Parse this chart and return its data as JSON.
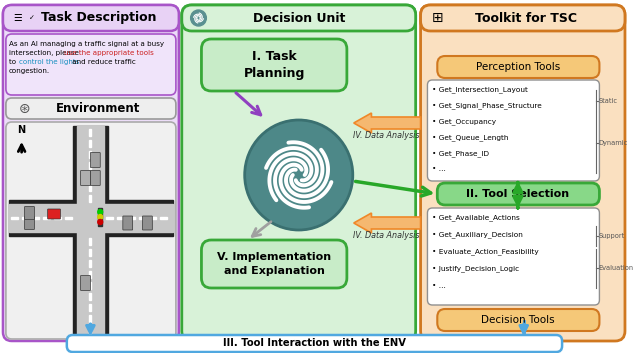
{
  "title_task": "Task Description",
  "title_decision": "Decision Unit",
  "title_toolkit": "Toolkit for TSC",
  "env_title": "Environment",
  "perception_title": "Perception Tools",
  "perception_items": [
    "Get_Intersection_Layout",
    "Get_Signal_Phase_Structure",
    "Get_Occupancy",
    "Get_Queue_Length",
    "Get_Phase_ID",
    "..."
  ],
  "static_label": "Static",
  "dynamic_label": "Dynamic",
  "tool_selection": "II. Tool Selection",
  "decision_title": "Decision Tools",
  "decision_items": [
    "Get_Available_Actions",
    "Get_Auxiliary_Decision",
    "Evaluate_Action_Feasibility",
    "Justify_Decision_Logic",
    "..."
  ],
  "support_label": "Support",
  "evaluation_label": "Evaluation",
  "step1": "I. Task\nPlanning",
  "step5": "V. Implementation\nand Explanation",
  "step3": "III. Tool Interaction with the ENV",
  "data_analysis": "IV. Data Analysis",
  "purple_border": "#a855c8",
  "purple_light": "#ecddf8",
  "purple_text_box": "#f0e4fa",
  "green_border": "#38a838",
  "green_light": "#d8f2d8",
  "green_step_fill": "#c8ecc8",
  "green_sel_fill": "#88d888",
  "orange_border": "#d07820",
  "orange_light": "#fae0c0",
  "orange_hdr_fill": "#f5c878",
  "teal_circle": "#4d8888",
  "blue_col": "#50a8e0",
  "arr_orange": "#f08828",
  "arr_orange_fill": "#f5b870",
  "arr_green": "#28a828",
  "arr_gray": "#a0a0a0",
  "arr_purple": "#9040c0",
  "arr_blue": "#50a8e0",
  "env_bg": "#f0f0f0",
  "road_light": "#c8c8c8",
  "road_dark": "#888888",
  "road_black": "#222222"
}
